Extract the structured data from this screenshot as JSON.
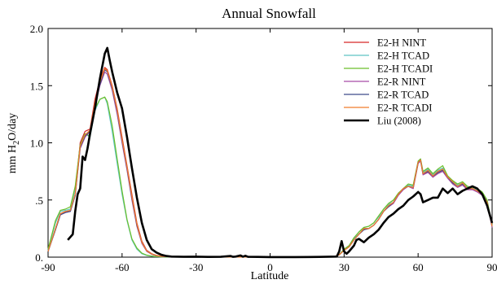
{
  "chart_data": {
    "type": "line",
    "title": "Annual Snowfall",
    "xlabel": "Latitude",
    "ylabel_main": "mm H",
    "ylabel_sub": "2",
    "ylabel_tail": "O/day",
    "xlim": [
      -90,
      90
    ],
    "ylim": [
      0,
      2.0
    ],
    "x_ticks": [
      -90,
      -60,
      -30,
      0,
      30,
      60,
      90
    ],
    "x_tick_labels": [
      "-90",
      "-60",
      "-30",
      "0",
      "30",
      "60",
      "90"
    ],
    "y_ticks": [
      0,
      0.5,
      1.0,
      1.5,
      2.0
    ],
    "y_tick_labels": [
      "0.",
      ".5",
      "1.0",
      "1.5",
      "2.0"
    ],
    "grid": false,
    "legend_position": "top-right",
    "series": [
      {
        "name": "E2-H NINT",
        "color": "#d62728",
        "width": 1.2,
        "x": [
          -90,
          -87,
          -85,
          -83,
          -81,
          -79,
          -77,
          -75,
          -73,
          -71,
          -69,
          -67,
          -66,
          -64,
          -62,
          -60,
          -58,
          -56,
          -54,
          -52,
          -50,
          -48,
          -46,
          -44,
          -40,
          -30,
          -20,
          -10,
          0,
          10,
          20,
          26,
          28,
          30,
          32,
          34,
          36,
          38,
          40,
          42,
          44,
          46,
          48,
          50,
          52,
          54,
          56,
          58,
          60,
          61,
          62,
          64,
          66,
          68,
          70,
          72,
          74,
          76,
          78,
          80,
          82,
          84,
          86,
          88,
          90
        ],
        "y": [
          0.05,
          0.25,
          0.38,
          0.4,
          0.4,
          0.55,
          1.0,
          1.1,
          1.12,
          1.38,
          1.55,
          1.66,
          1.64,
          1.5,
          1.3,
          1.05,
          0.8,
          0.55,
          0.3,
          0.14,
          0.06,
          0.03,
          0.015,
          0.008,
          0.004,
          0.002,
          0.001,
          0.001,
          0.001,
          0.002,
          0.003,
          0.005,
          0.02,
          0.06,
          0.09,
          0.15,
          0.2,
          0.25,
          0.25,
          0.28,
          0.33,
          0.4,
          0.45,
          0.48,
          0.55,
          0.6,
          0.62,
          0.6,
          0.82,
          0.85,
          0.72,
          0.75,
          0.7,
          0.74,
          0.76,
          0.7,
          0.65,
          0.62,
          0.64,
          0.6,
          0.6,
          0.58,
          0.55,
          0.48,
          0.27
        ]
      },
      {
        "name": "E2-H TCAD",
        "color": "#5fc4c4",
        "width": 1.2,
        "x": [
          -90,
          -87,
          -85,
          -83,
          -81,
          -79,
          -77,
          -75,
          -73,
          -71,
          -69,
          -67,
          -66,
          -64,
          -62,
          -60,
          -58,
          -56,
          -54,
          -52,
          -50,
          -48,
          -46,
          -44,
          -40,
          -30,
          -20,
          -10,
          0,
          10,
          20,
          26,
          28,
          30,
          32,
          34,
          36,
          38,
          40,
          42,
          44,
          46,
          48,
          50,
          52,
          54,
          56,
          58,
          60,
          61,
          62,
          64,
          66,
          68,
          70,
          72,
          74,
          76,
          78,
          80,
          82,
          84,
          86,
          88,
          90
        ],
        "y": [
          0.06,
          0.3,
          0.4,
          0.41,
          0.42,
          0.6,
          0.98,
          1.08,
          1.05,
          1.28,
          1.38,
          1.4,
          1.34,
          1.1,
          0.82,
          0.55,
          0.32,
          0.15,
          0.07,
          0.03,
          0.015,
          0.008,
          0.004,
          0.002,
          0.001,
          0.001,
          0.001,
          0.001,
          0.001,
          0.001,
          0.002,
          0.004,
          0.02,
          0.07,
          0.1,
          0.16,
          0.22,
          0.26,
          0.27,
          0.3,
          0.35,
          0.42,
          0.46,
          0.5,
          0.55,
          0.6,
          0.63,
          0.62,
          0.82,
          0.85,
          0.74,
          0.77,
          0.72,
          0.76,
          0.78,
          0.7,
          0.66,
          0.63,
          0.65,
          0.61,
          0.6,
          0.59,
          0.56,
          0.49,
          0.27
        ]
      },
      {
        "name": "E2-H TCADI",
        "color": "#6abf2a",
        "width": 1.2,
        "x": [
          -90,
          -87,
          -85,
          -83,
          -81,
          -79,
          -77,
          -75,
          -73,
          -71,
          -69,
          -67,
          -66,
          -64,
          -62,
          -60,
          -58,
          -56,
          -54,
          -52,
          -50,
          -48,
          -46,
          -44,
          -40,
          -30,
          -20,
          -10,
          0,
          10,
          20,
          26,
          28,
          30,
          32,
          34,
          36,
          38,
          40,
          42,
          44,
          46,
          48,
          50,
          52,
          54,
          56,
          58,
          60,
          61,
          62,
          64,
          66,
          68,
          70,
          72,
          74,
          76,
          78,
          80,
          82,
          84,
          86,
          88,
          90
        ],
        "y": [
          0.07,
          0.32,
          0.41,
          0.42,
          0.44,
          0.62,
          0.98,
          1.08,
          1.06,
          1.3,
          1.38,
          1.4,
          1.36,
          1.15,
          0.86,
          0.58,
          0.33,
          0.16,
          0.08,
          0.035,
          0.018,
          0.009,
          0.005,
          0.003,
          0.001,
          0.001,
          0.001,
          0.001,
          0.001,
          0.001,
          0.002,
          0.004,
          0.02,
          0.07,
          0.1,
          0.17,
          0.22,
          0.26,
          0.27,
          0.3,
          0.36,
          0.42,
          0.47,
          0.5,
          0.56,
          0.6,
          0.64,
          0.63,
          0.84,
          0.86,
          0.75,
          0.78,
          0.73,
          0.77,
          0.8,
          0.71,
          0.67,
          0.64,
          0.66,
          0.62,
          0.61,
          0.6,
          0.57,
          0.5,
          0.28
        ]
      },
      {
        "name": "E2-R NINT",
        "color": "#a64ca6",
        "width": 1.2,
        "x": [
          -90,
          -87,
          -85,
          -83,
          -81,
          -79,
          -77,
          -75,
          -73,
          -71,
          -69,
          -67,
          -66,
          -64,
          -62,
          -60,
          -58,
          -56,
          -54,
          -52,
          -50,
          -48,
          -46,
          -44,
          -40,
          -30,
          -20,
          -10,
          0,
          10,
          20,
          26,
          28,
          30,
          32,
          34,
          36,
          38,
          40,
          42,
          44,
          46,
          48,
          50,
          52,
          54,
          56,
          58,
          60,
          61,
          62,
          64,
          66,
          68,
          70,
          72,
          74,
          76,
          78,
          80,
          82,
          84,
          86,
          88,
          90
        ],
        "y": [
          0.05,
          0.24,
          0.37,
          0.39,
          0.4,
          0.54,
          0.95,
          1.05,
          1.1,
          1.32,
          1.5,
          1.62,
          1.6,
          1.46,
          1.25,
          1.0,
          0.76,
          0.5,
          0.27,
          0.12,
          0.05,
          0.025,
          0.012,
          0.006,
          0.003,
          0.002,
          0.001,
          0.001,
          0.001,
          0.001,
          0.002,
          0.004,
          0.02,
          0.06,
          0.09,
          0.15,
          0.2,
          0.24,
          0.25,
          0.28,
          0.33,
          0.4,
          0.44,
          0.47,
          0.54,
          0.59,
          0.62,
          0.6,
          0.82,
          0.84,
          0.72,
          0.74,
          0.7,
          0.73,
          0.75,
          0.69,
          0.64,
          0.61,
          0.63,
          0.59,
          0.59,
          0.57,
          0.54,
          0.47,
          0.26
        ]
      },
      {
        "name": "E2-R TCAD",
        "color": "#3d4a8a",
        "width": 1.2,
        "x": [
          -90,
          -87,
          -85,
          -83,
          -81,
          -79,
          -77,
          -75,
          -73,
          -71,
          -69,
          -67,
          -66,
          -64,
          -62,
          -60,
          -58,
          -56,
          -54,
          -52,
          -50,
          -48,
          -46,
          -44,
          -40,
          -30,
          -20,
          -10,
          0,
          10,
          20,
          26,
          28,
          30,
          32,
          34,
          36,
          38,
          40,
          42,
          44,
          46,
          48,
          50,
          52,
          54,
          56,
          58,
          60,
          61,
          62,
          64,
          66,
          68,
          70,
          72,
          74,
          76,
          78,
          80,
          82,
          84,
          86,
          88,
          90
        ],
        "y": [
          0.05,
          0.24,
          0.37,
          0.39,
          0.4,
          0.54,
          0.96,
          1.06,
          1.1,
          1.33,
          1.51,
          1.64,
          1.62,
          1.48,
          1.28,
          1.02,
          0.78,
          0.52,
          0.28,
          0.13,
          0.055,
          0.027,
          0.013,
          0.007,
          0.003,
          0.002,
          0.001,
          0.001,
          0.001,
          0.001,
          0.002,
          0.004,
          0.02,
          0.06,
          0.09,
          0.15,
          0.2,
          0.24,
          0.25,
          0.28,
          0.33,
          0.4,
          0.44,
          0.48,
          0.55,
          0.6,
          0.62,
          0.61,
          0.83,
          0.85,
          0.73,
          0.75,
          0.71,
          0.74,
          0.76,
          0.7,
          0.65,
          0.62,
          0.64,
          0.6,
          0.6,
          0.58,
          0.55,
          0.48,
          0.27
        ]
      },
      {
        "name": "E2-R TCADI",
        "color": "#f07c2a",
        "width": 1.2,
        "x": [
          -90,
          -87,
          -85,
          -83,
          -81,
          -79,
          -77,
          -75,
          -73,
          -71,
          -69,
          -67,
          -66,
          -64,
          -62,
          -60,
          -58,
          -56,
          -54,
          -52,
          -50,
          -48,
          -46,
          -44,
          -40,
          -30,
          -20,
          -10,
          0,
          10,
          20,
          26,
          28,
          30,
          32,
          34,
          36,
          38,
          40,
          42,
          44,
          46,
          48,
          50,
          52,
          54,
          56,
          58,
          60,
          61,
          62,
          64,
          66,
          68,
          70,
          72,
          74,
          76,
          78,
          80,
          82,
          84,
          86,
          88,
          90
        ],
        "y": [
          0.05,
          0.25,
          0.38,
          0.4,
          0.41,
          0.55,
          0.97,
          1.07,
          1.11,
          1.35,
          1.53,
          1.65,
          1.63,
          1.49,
          1.29,
          1.03,
          0.79,
          0.53,
          0.29,
          0.13,
          0.055,
          0.028,
          0.014,
          0.007,
          0.003,
          0.002,
          0.001,
          0.001,
          0.001,
          0.001,
          0.002,
          0.004,
          0.02,
          0.06,
          0.09,
          0.15,
          0.2,
          0.25,
          0.25,
          0.28,
          0.33,
          0.4,
          0.45,
          0.48,
          0.55,
          0.6,
          0.62,
          0.61,
          0.83,
          0.85,
          0.73,
          0.76,
          0.71,
          0.75,
          0.77,
          0.7,
          0.66,
          0.62,
          0.65,
          0.6,
          0.6,
          0.58,
          0.55,
          0.48,
          0.27
        ]
      },
      {
        "name": "Liu (2008)",
        "color": "#000000",
        "width": 2.6,
        "x": [
          -82,
          -80,
          -79,
          -78,
          -77,
          -76,
          -75,
          -74,
          -73,
          -71,
          -69,
          -67,
          -66,
          -65,
          -64,
          -62,
          -60,
          -58,
          -56,
          -54,
          -52,
          -50,
          -48,
          -46,
          -44,
          -42,
          -40,
          -35,
          -30,
          -25,
          -20,
          -16,
          -15,
          -14,
          -12,
          -11,
          -10,
          -9,
          -5,
          0,
          10,
          20,
          27,
          28,
          29,
          30,
          31,
          32,
          34,
          35,
          36,
          38,
          40,
          42,
          44,
          46,
          48,
          50,
          52,
          54,
          56,
          58,
          60,
          61,
          62,
          64,
          66,
          68,
          70,
          72,
          74,
          76,
          78,
          80,
          82,
          84,
          86,
          88,
          90
        ],
        "y": [
          0.15,
          0.2,
          0.4,
          0.55,
          0.6,
          0.88,
          0.85,
          0.95,
          1.08,
          1.3,
          1.56,
          1.78,
          1.83,
          1.72,
          1.62,
          1.44,
          1.3,
          1.05,
          0.78,
          0.52,
          0.3,
          0.15,
          0.07,
          0.04,
          0.02,
          0.01,
          0.005,
          0.003,
          0.004,
          0.002,
          0.003,
          0.01,
          0.003,
          0.005,
          0.015,
          0.004,
          0.012,
          0.003,
          0.002,
          0.001,
          0.001,
          0.002,
          0.005,
          0.05,
          0.14,
          0.05,
          0.03,
          0.05,
          0.1,
          0.15,
          0.16,
          0.13,
          0.17,
          0.2,
          0.24,
          0.3,
          0.35,
          0.38,
          0.42,
          0.45,
          0.5,
          0.53,
          0.57,
          0.55,
          0.48,
          0.5,
          0.52,
          0.52,
          0.6,
          0.56,
          0.6,
          0.55,
          0.58,
          0.6,
          0.62,
          0.6,
          0.55,
          0.45,
          0.3
        ]
      }
    ]
  }
}
